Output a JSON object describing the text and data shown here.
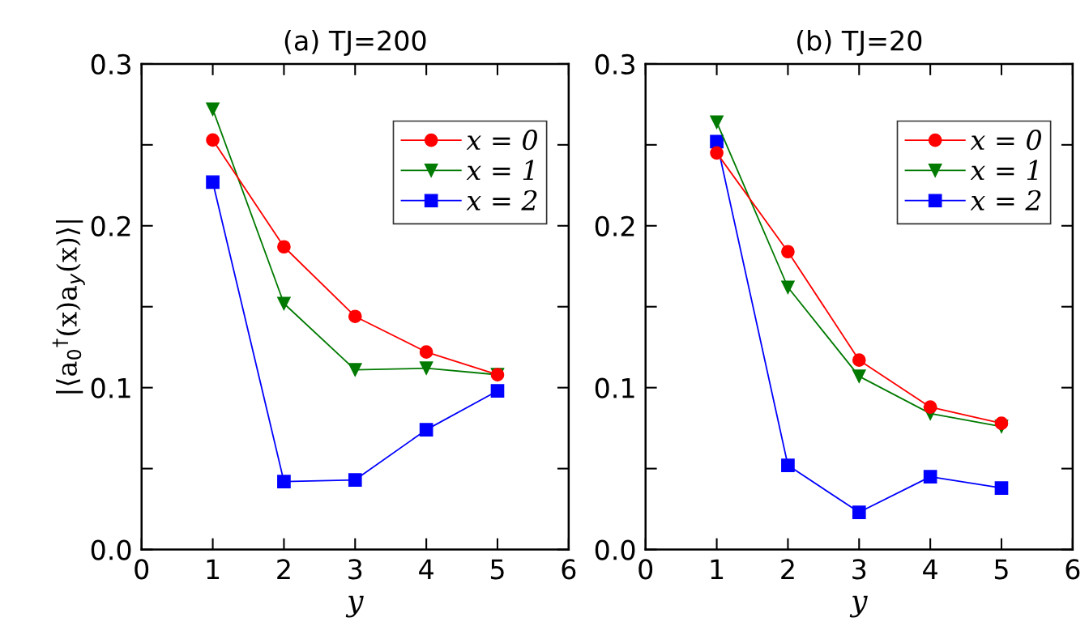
{
  "chart_data": [
    {
      "type": "line",
      "title": "(a) TJ=200",
      "xlabel": "y",
      "ylabel": "|⟨a$_{0}$$^{†}$(x)a$_{y}$(x)⟩|",
      "x": [
        1,
        2,
        3,
        4,
        5
      ],
      "xlim": [
        0,
        6
      ],
      "xticks": [
        0,
        1,
        2,
        3,
        4,
        5,
        6
      ],
      "ylim": [
        0,
        0.3
      ],
      "yticks": [
        {
          "value": 0,
          "label": "0.0"
        },
        {
          "value": 0.05,
          "label": null
        },
        0.1,
        {
          "value": 0.15,
          "label": null
        },
        0.2,
        {
          "value": 0.25,
          "label": null
        },
        0.3
      ],
      "grid": false,
      "legend": "top right",
      "series": [
        {
          "name": "x = 0",
          "color": "#ff0000",
          "marker": "circle",
          "values": [
            0.253,
            0.187,
            0.144,
            0.122,
            0.108
          ]
        },
        {
          "name": "x = 1",
          "color": "#007a00",
          "marker": "triangle",
          "values": [
            0.272,
            0.152,
            0.111,
            0.112,
            0.108
          ]
        },
        {
          "name": "x = 2",
          "color": "#0000ff",
          "marker": "square",
          "values": [
            0.227,
            0.042,
            0.043,
            0.074,
            0.098
          ]
        }
      ]
    },
    {
      "type": "line",
      "title": "(b) TJ=20",
      "xlabel": "y",
      "x": [
        1,
        2,
        3,
        4,
        5
      ],
      "xlim": [
        0,
        6
      ],
      "xticks": [
        0,
        1,
        2,
        3,
        4,
        5,
        6
      ],
      "ylim": [
        0,
        0.3
      ],
      "yticks": [
        {
          "value": 0,
          "label": "0.0"
        },
        {
          "value": 0.05,
          "label": null
        },
        0.1,
        {
          "value": 0.15,
          "label": null
        },
        0.2,
        {
          "value": 0.25,
          "label": null
        },
        0.3
      ],
      "grid": false,
      "legend": "top right",
      "series": [
        {
          "name": "x = 0",
          "color": "#ff0000",
          "marker": "circle",
          "values": [
            0.245,
            0.184,
            0.117,
            0.088,
            0.078
          ]
        },
        {
          "name": "x = 1",
          "color": "#007a00",
          "marker": "triangle",
          "values": [
            0.264,
            0.162,
            0.107,
            0.084,
            0.076
          ]
        },
        {
          "name": "x = 2",
          "color": "#0000ff",
          "marker": "square",
          "values": [
            0.252,
            0.052,
            0.023,
            0.045,
            0.038
          ]
        }
      ]
    }
  ]
}
